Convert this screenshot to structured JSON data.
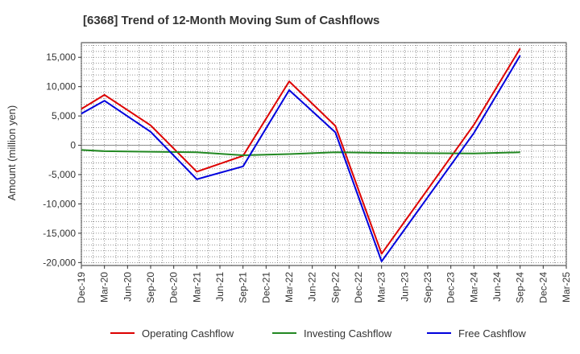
{
  "chart_data": {
    "type": "line",
    "title": "[6368]  Trend of 12-Month Moving Sum of Cashflows",
    "xlabel": "",
    "ylabel": "Amount (million yen)",
    "ylim": [
      -20500,
      17500
    ],
    "yticks": [
      15000,
      10000,
      5000,
      0,
      -5000,
      -10000,
      -15000,
      -20000
    ],
    "ytick_labels": [
      "15,000",
      "10,000",
      "5,000",
      "0",
      "-5,000",
      "-10,000",
      "-15,000",
      "-20,000"
    ],
    "categories": [
      "Dec-19",
      "Mar-20",
      "Jun-20",
      "Sep-20",
      "Dec-20",
      "Mar-21",
      "Jun-21",
      "Sep-21",
      "Dec-21",
      "Mar-22",
      "Jun-22",
      "Sep-22",
      "Dec-22",
      "Mar-23",
      "Jun-23",
      "Sep-23",
      "Dec-23",
      "Mar-24",
      "Jun-24",
      "Sep-24",
      "Dec-24",
      "Mar-25"
    ],
    "grid": true,
    "legend_position": "bottom",
    "series": [
      {
        "name": "Operating Cashflow",
        "color": "#dd0000",
        "values": [
          6200,
          8600,
          null,
          3400,
          null,
          -4500,
          null,
          -1800,
          null,
          10900,
          null,
          3300,
          null,
          -18500,
          null,
          null,
          null,
          3500,
          null,
          16500,
          null,
          null
        ]
      },
      {
        "name": "Investing Cashflow",
        "color": "#228822",
        "values": [
          -800,
          -1000,
          null,
          -1100,
          null,
          -1200,
          null,
          -1700,
          null,
          -1500,
          null,
          -1200,
          null,
          -1300,
          null,
          null,
          null,
          -1400,
          null,
          -1200,
          null,
          null
        ]
      },
      {
        "name": "Free Cashflow",
        "color": "#0000dd",
        "values": [
          5400,
          7600,
          null,
          2300,
          null,
          -5800,
          null,
          -3600,
          null,
          9400,
          null,
          2200,
          null,
          -19800,
          null,
          null,
          null,
          2100,
          null,
          15300,
          null,
          null
        ]
      }
    ]
  }
}
